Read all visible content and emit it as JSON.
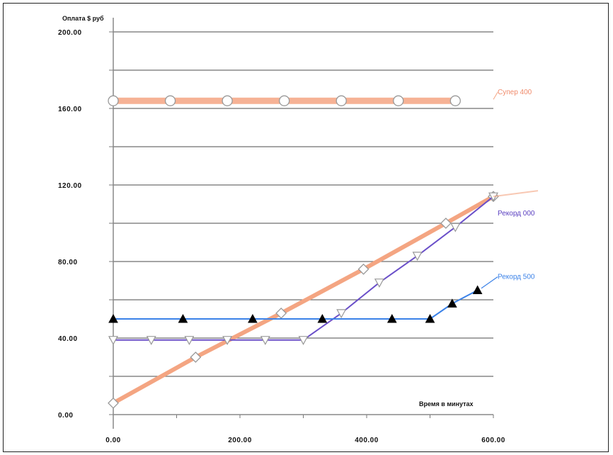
{
  "chart_data": {
    "type": "line",
    "ylabel": "Оплата $ руб",
    "xlabel": "Время в минутах",
    "xlim": [
      0,
      600
    ],
    "ylim": [
      0,
      200
    ],
    "x_ticks": [
      0,
      200,
      400,
      600
    ],
    "x_tick_labels": [
      "0.00",
      "200.00",
      "400.00",
      "600.00"
    ],
    "y_ticks": [
      0,
      40,
      80,
      120,
      160,
      200
    ],
    "y_tick_labels": [
      "0.00",
      "40.00",
      "80.00",
      "120.00",
      "160.00",
      "200.00"
    ],
    "grid": true,
    "series": [
      {
        "name": "Супер 400",
        "subtitle": "",
        "color": "#f4a582",
        "marker": "circle",
        "x": [
          0,
          90,
          180,
          270,
          360,
          450,
          540
        ],
        "y": [
          164,
          164,
          164,
          164,
          164,
          164,
          164
        ]
      },
      {
        "name": "",
        "color": "#f4a582",
        "marker": "diamond",
        "x": [
          0,
          130,
          265,
          395,
          525,
          600
        ],
        "y": [
          6,
          30,
          53,
          76,
          100,
          114
        ]
      },
      {
        "name": "Рекорд 000",
        "color": "#6a4fc9",
        "marker": "triangle-down",
        "x": [
          0,
          60,
          120,
          180,
          240,
          300,
          360,
          420,
          480,
          540,
          600
        ],
        "y": [
          39,
          39,
          39,
          39,
          39,
          39,
          53,
          69,
          83,
          98,
          114
        ]
      },
      {
        "name": "Рекорд 500",
        "subtitle": "",
        "color": "#3b82e8",
        "marker": "triangle-up",
        "x": [
          0,
          110,
          220,
          330,
          440,
          500,
          535,
          575
        ],
        "y": [
          50,
          50,
          50,
          50,
          50,
          50,
          58,
          65
        ]
      }
    ]
  }
}
